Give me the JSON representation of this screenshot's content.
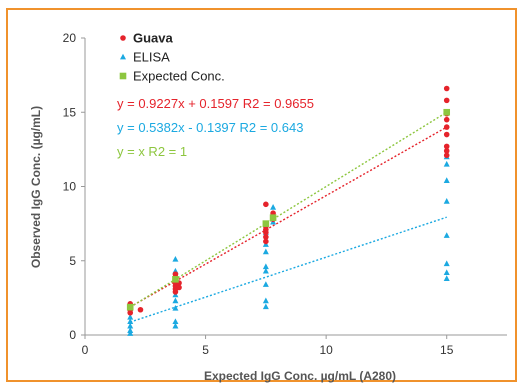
{
  "chart_data": {
    "type": "scatter",
    "title": "",
    "xlabel": "Expected IgG Conc. µg/mL (A280)",
    "ylabel": "Observed IgG Conc. (µg/mL)",
    "xlim": [
      0,
      17.5
    ],
    "ylim": [
      0,
      20
    ],
    "xticks": [
      "0",
      "5",
      "10",
      "15"
    ],
    "yticks": [
      "0",
      "5",
      "10",
      "15",
      "20"
    ],
    "grid": false,
    "legend_position": "top-left",
    "series": [
      {
        "name": "Guava",
        "marker": "circle",
        "color": "#e5232b",
        "points": [
          [
            1.875,
            1.5
          ],
          [
            1.875,
            1.7
          ],
          [
            1.875,
            1.8
          ],
          [
            1.875,
            1.9
          ],
          [
            1.875,
            2.0
          ],
          [
            1.875,
            2.1
          ],
          [
            2.3,
            1.7
          ],
          [
            3.75,
            2.9
          ],
          [
            3.75,
            3.1
          ],
          [
            3.75,
            3.3
          ],
          [
            3.75,
            3.5
          ],
          [
            3.75,
            3.7
          ],
          [
            3.75,
            3.9
          ],
          [
            3.75,
            4.1
          ],
          [
            3.9,
            3.2
          ],
          [
            3.9,
            3.5
          ],
          [
            7.5,
            6.3
          ],
          [
            7.5,
            6.6
          ],
          [
            7.5,
            6.9
          ],
          [
            7.5,
            7.1
          ],
          [
            7.5,
            7.3
          ],
          [
            7.5,
            8.8
          ],
          [
            7.8,
            7.8
          ],
          [
            7.8,
            8.2
          ],
          [
            15,
            12.1
          ],
          [
            15,
            12.4
          ],
          [
            15,
            12.7
          ],
          [
            15,
            13.5
          ],
          [
            15,
            14.0
          ],
          [
            15,
            14.5
          ],
          [
            15,
            14.9
          ],
          [
            15,
            15.8
          ],
          [
            15,
            16.6
          ]
        ],
        "trendline": {
          "slope": 0.9227,
          "intercept": 0.1597,
          "x_range": [
            1.875,
            15
          ]
        }
      },
      {
        "name": "ELISA",
        "marker": "triangle",
        "color": "#1ba9e1",
        "points": [
          [
            1.875,
            0.1
          ],
          [
            1.875,
            0.3
          ],
          [
            1.875,
            0.6
          ],
          [
            1.875,
            0.9
          ],
          [
            1.875,
            1.2
          ],
          [
            1.875,
            1.8
          ],
          [
            3.75,
            0.6
          ],
          [
            3.75,
            0.9
          ],
          [
            3.75,
            1.8
          ],
          [
            3.75,
            2.3
          ],
          [
            3.75,
            2.7
          ],
          [
            3.75,
            3.9
          ],
          [
            3.75,
            4.3
          ],
          [
            3.75,
            5.1
          ],
          [
            7.5,
            1.9
          ],
          [
            7.5,
            2.3
          ],
          [
            7.5,
            3.4
          ],
          [
            7.5,
            4.3
          ],
          [
            7.5,
            4.6
          ],
          [
            7.5,
            5.6
          ],
          [
            7.5,
            6.1
          ],
          [
            7.5,
            6.9
          ],
          [
            7.8,
            8.6
          ],
          [
            7.8,
            7.6
          ],
          [
            15,
            3.8
          ],
          [
            15,
            4.2
          ],
          [
            15,
            4.8
          ],
          [
            15,
            6.7
          ],
          [
            15,
            9.0
          ],
          [
            15,
            10.4
          ],
          [
            15,
            11.5
          ],
          [
            15,
            12.0
          ]
        ],
        "trendline": {
          "slope": 0.5382,
          "intercept": -0.1397,
          "x_range": [
            1.875,
            15
          ]
        }
      },
      {
        "name": "Expected Conc.",
        "marker": "square",
        "color": "#8dc63f",
        "points": [
          [
            1.875,
            1.875
          ],
          [
            3.75,
            3.75
          ],
          [
            7.5,
            7.5
          ],
          [
            7.8,
            7.9
          ],
          [
            15,
            15
          ]
        ],
        "trendline": {
          "slope": 1,
          "intercept": 0,
          "x_range": [
            1.875,
            15
          ]
        }
      }
    ],
    "equations": [
      {
        "text": "y = 0.9227x + 0.1597 R2 = 0.9655",
        "color": "#e5232b"
      },
      {
        "text": "y = 0.5382x - 0.1397 R2 = 0.643",
        "color": "#1ba9e1"
      },
      {
        "text": "y = x R2 = 1",
        "color": "#8dc63f"
      }
    ],
    "axis_color": "#999999",
    "frame_color": "#f0922c"
  }
}
